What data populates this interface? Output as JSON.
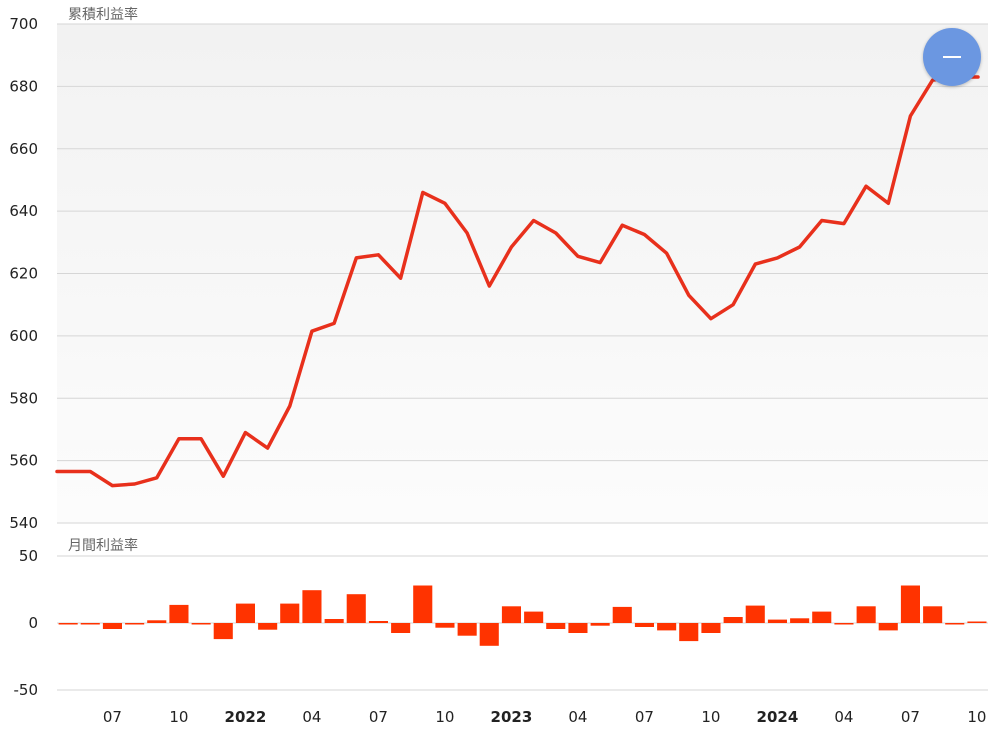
{
  "colors": {
    "line": "#e8301c",
    "bar": "#ff3300",
    "plot_bg_top": "#f2f2f2",
    "plot_bg_bottom": "#fcfcfc",
    "fab": "#6b97e1"
  },
  "collapse_button": {
    "icon": "minus-icon"
  },
  "chart_data": [
    {
      "type": "line",
      "title": "累積利益率",
      "ylim": [
        540,
        700
      ],
      "yticks": [
        540,
        560,
        580,
        600,
        620,
        640,
        660,
        680,
        700
      ],
      "ytick_labels": [
        "540",
        "560",
        "580",
        "600",
        "620",
        "640",
        "660",
        "680",
        "700"
      ],
      "grid": true,
      "x": [
        "2021-05",
        "2021-06",
        "2021-07",
        "2021-08",
        "2021-09",
        "2021-10",
        "2021-11",
        "2021-12",
        "2022-01",
        "2022-02",
        "2022-03",
        "2022-04",
        "2022-05",
        "2022-06",
        "2022-07",
        "2022-08",
        "2022-09",
        "2022-10",
        "2022-11",
        "2022-12",
        "2023-01",
        "2023-02",
        "2023-03",
        "2023-04",
        "2023-05",
        "2023-06",
        "2023-07",
        "2023-08",
        "2023-09",
        "2023-10",
        "2023-11",
        "2023-12",
        "2024-01",
        "2024-02",
        "2024-03",
        "2024-04",
        "2024-05",
        "2024-06",
        "2024-07",
        "2024-08",
        "2024-09",
        "2024-10"
      ],
      "series": [
        {
          "values": [
            556.5,
            556.5,
            552,
            552.5,
            554.5,
            567,
            567,
            555,
            569,
            564,
            577.5,
            601.5,
            604,
            625,
            626,
            618.5,
            646,
            642.5,
            633,
            616,
            628.5,
            637,
            633,
            625.5,
            623.5,
            635.5,
            632.5,
            626.5,
            613,
            605.5,
            610,
            623,
            625,
            628.5,
            637,
            636,
            648,
            642.5,
            670.5,
            682,
            683,
            683
          ]
        }
      ]
    },
    {
      "type": "bar",
      "title": "月間利益率",
      "ylim": [
        -50,
        50
      ],
      "yticks": [
        -50,
        0,
        50
      ],
      "ytick_labels": [
        "-50",
        "0",
        "50"
      ],
      "grid": true,
      "x": [
        "2021-05",
        "2021-06",
        "2021-07",
        "2021-08",
        "2021-09",
        "2021-10",
        "2021-11",
        "2021-12",
        "2022-01",
        "2022-02",
        "2022-03",
        "2022-04",
        "2022-05",
        "2022-06",
        "2022-07",
        "2022-08",
        "2022-09",
        "2022-10",
        "2022-11",
        "2022-12",
        "2023-01",
        "2023-02",
        "2023-03",
        "2023-04",
        "2023-05",
        "2023-06",
        "2023-07",
        "2023-08",
        "2023-09",
        "2023-10",
        "2023-11",
        "2023-12",
        "2024-01",
        "2024-02",
        "2024-03",
        "2024-04",
        "2024-05",
        "2024-06",
        "2024-07",
        "2024-08",
        "2024-09",
        "2024-10"
      ],
      "series": [
        {
          "values": [
            -0.5,
            -1,
            -4.5,
            -1,
            2,
            13.5,
            -0.5,
            -12,
            14.5,
            -5,
            14.5,
            24.5,
            3,
            21.5,
            1.5,
            -7.5,
            28,
            -3.5,
            -9.5,
            -17,
            12.5,
            8.5,
            -4.5,
            -7.5,
            -2,
            12,
            -3,
            -5.5,
            -13.5,
            -7.5,
            4.5,
            13,
            2.5,
            3.5,
            8.5,
            -1,
            12.5,
            -5.5,
            28,
            12.5,
            -0.5,
            0
          ]
        }
      ],
      "xtick_labels": [
        {
          "x": "2021-07",
          "label": "07",
          "bold": false
        },
        {
          "x": "2021-10",
          "label": "10",
          "bold": false
        },
        {
          "x": "2022-01",
          "label": "2022",
          "bold": true
        },
        {
          "x": "2022-04",
          "label": "04",
          "bold": false
        },
        {
          "x": "2022-07",
          "label": "07",
          "bold": false
        },
        {
          "x": "2022-10",
          "label": "10",
          "bold": false
        },
        {
          "x": "2023-01",
          "label": "2023",
          "bold": true
        },
        {
          "x": "2023-04",
          "label": "04",
          "bold": false
        },
        {
          "x": "2023-07",
          "label": "07",
          "bold": false
        },
        {
          "x": "2023-10",
          "label": "10",
          "bold": false
        },
        {
          "x": "2024-01",
          "label": "2024",
          "bold": true
        },
        {
          "x": "2024-04",
          "label": "04",
          "bold": false
        },
        {
          "x": "2024-07",
          "label": "07",
          "bold": false
        },
        {
          "x": "2024-10",
          "label": "10",
          "bold": false
        }
      ]
    }
  ]
}
